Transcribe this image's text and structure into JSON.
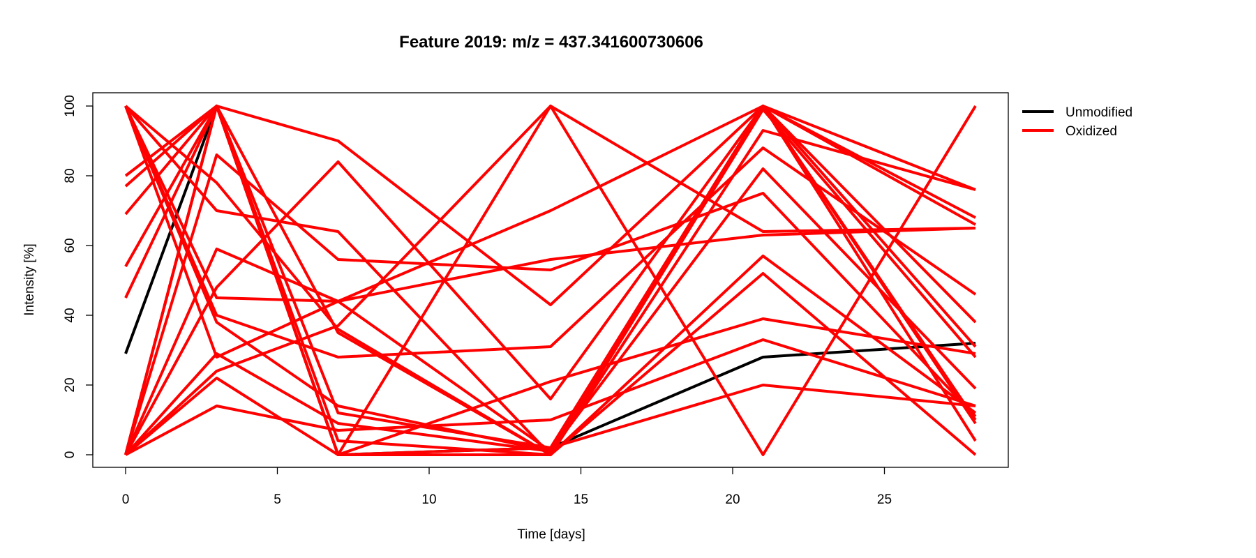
{
  "chart_data": {
    "type": "line",
    "title": "Feature 2019: m/z = 437.341600730606",
    "xlabel": "Time [days]",
    "ylabel": "Intensity [%]",
    "xlim": [
      0,
      28
    ],
    "ylim": [
      0,
      100
    ],
    "x_ticks": [
      0,
      5,
      10,
      15,
      20,
      25
    ],
    "y_ticks": [
      0,
      20,
      40,
      60,
      80,
      100
    ],
    "grid": false,
    "legend_position": "outside top-right",
    "legend": [
      {
        "label": "Unmodified",
        "color": "#000000"
      },
      {
        "label": "Oxidized",
        "color": "#ff0000"
      }
    ],
    "x": [
      0,
      3,
      7,
      14,
      21,
      28
    ],
    "series": [
      {
        "group": "Unmodified",
        "color": "#000000",
        "values": [
          29,
          100,
          0,
          2,
          28,
          32
        ]
      },
      {
        "group": "Oxidized",
        "color": "#ff0000",
        "values": [
          100,
          78,
          36,
          0,
          100,
          68
        ]
      },
      {
        "group": "Oxidized",
        "color": "#ff0000",
        "values": [
          100,
          70,
          64,
          0,
          93,
          76
        ]
      },
      {
        "group": "Oxidized",
        "color": "#ff0000",
        "values": [
          100,
          45,
          44,
          56,
          63,
          65
        ]
      },
      {
        "group": "Oxidized",
        "color": "#ff0000",
        "values": [
          100,
          40,
          28,
          31,
          88,
          46
        ]
      },
      {
        "group": "Oxidized",
        "color": "#ff0000",
        "values": [
          100,
          38,
          14,
          1,
          100,
          76
        ]
      },
      {
        "group": "Oxidized",
        "color": "#ff0000",
        "values": [
          100,
          28,
          44,
          70,
          100,
          10
        ]
      },
      {
        "group": "Oxidized",
        "color": "#ff0000",
        "values": [
          77,
          100,
          35,
          0,
          99,
          28
        ]
      },
      {
        "group": "Oxidized",
        "color": "#ff0000",
        "values": [
          80,
          100,
          0,
          2,
          100,
          66
        ]
      },
      {
        "group": "Oxidized",
        "color": "#ff0000",
        "values": [
          69,
          100,
          0,
          100,
          64,
          65
        ]
      },
      {
        "group": "Oxidized",
        "color": "#ff0000",
        "values": [
          54,
          100,
          90,
          43,
          100,
          38
        ]
      },
      {
        "group": "Oxidized",
        "color": "#ff0000",
        "values": [
          45,
          100,
          0,
          0,
          57,
          12
        ]
      },
      {
        "group": "Oxidized",
        "color": "#ff0000",
        "values": [
          0,
          86,
          56,
          53,
          75,
          11
        ]
      },
      {
        "group": "Oxidized",
        "color": "#ff0000",
        "values": [
          0,
          59,
          44,
          1,
          82,
          19
        ]
      },
      {
        "group": "Oxidized",
        "color": "#ff0000",
        "values": [
          0,
          48,
          84,
          16,
          100,
          4
        ]
      },
      {
        "group": "Oxidized",
        "color": "#ff0000",
        "values": [
          0,
          29,
          9,
          1,
          100,
          31
        ]
      },
      {
        "group": "Oxidized",
        "color": "#ff0000",
        "values": [
          0,
          24,
          37,
          100,
          0,
          100
        ]
      },
      {
        "group": "Oxidized",
        "color": "#ff0000",
        "values": [
          0,
          22,
          0,
          21,
          39,
          29
        ]
      },
      {
        "group": "Oxidized",
        "color": "#ff0000",
        "values": [
          0,
          14,
          7,
          10,
          33,
          14
        ]
      },
      {
        "group": "Oxidized",
        "color": "#ff0000",
        "values": [
          0,
          100,
          0,
          0,
          52,
          0
        ]
      },
      {
        "group": "Oxidized",
        "color": "#ff0000",
        "values": [
          0,
          100,
          12,
          2,
          20,
          14
        ]
      },
      {
        "group": "Oxidized",
        "color": "#ff0000",
        "values": [
          0,
          100,
          4,
          0,
          100,
          9
        ]
      }
    ]
  }
}
